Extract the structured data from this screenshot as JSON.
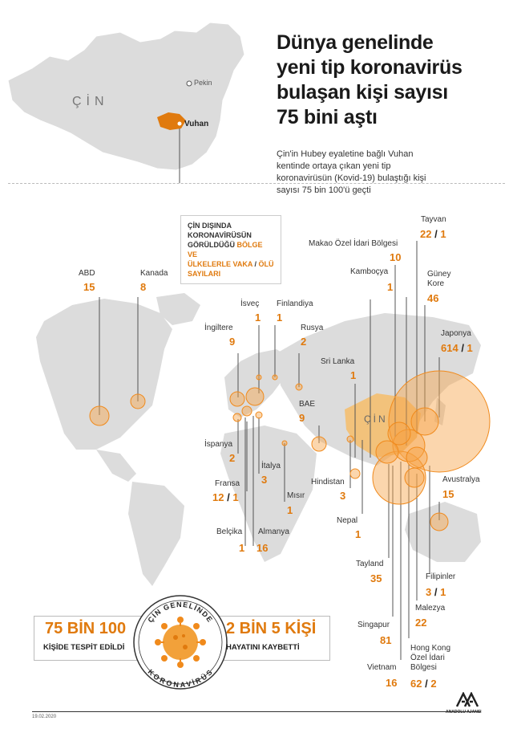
{
  "title": "Dünya genelinde yeni tip koronavirüs bulaşan kişi sayısı 75 bini aştı",
  "title_lines": [
    "Dünya genelinde",
    "yeni tip koronavirüs",
    "bulaşan kişi sayısı",
    "75 bini aştı"
  ],
  "subtitle": "Çin'in Hubey eyaletine bağlı Vuhan kentinde ortaya çıkan yeni tip koronavirüsün (Kovid-19) bulaştığı kişi sayısı 75 bin 100'ü geçti",
  "subtitle_lines": [
    "Çin'in Hubey eyaletine bağlı Vuhan",
    "kentinde ortaya çıkan yeni tip",
    "koronavirüsün (Kovid-19) bulaştığı kişi",
    "sayısı 75 bin 100'ü geçti"
  ],
  "china_map": {
    "country": "ÇİN",
    "capital": "Pekin",
    "city": "Vuhan"
  },
  "legend": {
    "line1": "ÇİN DIŞINDA",
    "line2": "KORONAVİRÜSÜN",
    "line3_plain": "GÖRÜLDÜĞÜ",
    "line3_orange": "BÖLGE VE",
    "line4_orange": "ÜLKELERLE VAKA",
    "line4_plain": "/",
    "line4_orange2": "ÖLÜ",
    "line5_orange": "SAYILARI"
  },
  "world_map_label": "ÇİN",
  "countries": {
    "abd": {
      "name": "ABD",
      "value": "15"
    },
    "kanada": {
      "name": "Kanada",
      "value": "8"
    },
    "isvec": {
      "name": "İsveç",
      "value": "1"
    },
    "finlandiya": {
      "name": "Finlandiya",
      "value": "1"
    },
    "ingiltere": {
      "name": "İngiltere",
      "value": "9"
    },
    "rusya": {
      "name": "Rusya",
      "value": "2"
    },
    "srilanka": {
      "name": "Sri Lanka",
      "value": "1"
    },
    "bae": {
      "name": "BAE",
      "value": "9"
    },
    "ispanya": {
      "name": "İspanya",
      "value": "2"
    },
    "italya": {
      "name": "İtalya",
      "value": "3"
    },
    "fransa": {
      "name": "Fransa",
      "cases": "12",
      "deaths": "1"
    },
    "misir": {
      "name": "Mısır",
      "value": "1"
    },
    "hindistan": {
      "name": "Hindistan",
      "value": "3"
    },
    "nepal": {
      "name": "Nepal",
      "value": "1"
    },
    "belcika": {
      "name": "Belçika",
      "value": "1"
    },
    "almanya": {
      "name": "Almanya",
      "value": "16"
    },
    "tayvan": {
      "name": "Tayvan",
      "cases": "22",
      "deaths": "1"
    },
    "makao": {
      "name": "Makao Özel İdari Bölgesi",
      "value": "10"
    },
    "kambocya": {
      "name": "Kamboçya",
      "value": "1"
    },
    "guneykore": {
      "name_line1": "Güney",
      "name_line2": "Kore",
      "value": "46"
    },
    "japonya": {
      "name": "Japonya",
      "cases": "614",
      "deaths": "1"
    },
    "avustralya": {
      "name": "Avustralya",
      "value": "15"
    },
    "tayland": {
      "name": "Tayland",
      "value": "35"
    },
    "filipinler": {
      "name": "Filipinler",
      "cases": "3",
      "deaths": "1"
    },
    "malezya": {
      "name": "Malezya",
      "value": "22"
    },
    "singapur": {
      "name": "Singapur",
      "value": "81"
    },
    "hongkong": {
      "name_line1": "Hong Kong",
      "name_line2": "Özel İdari",
      "name_line3": "Bölgesi",
      "cases": "62",
      "deaths": "2"
    },
    "vietnam": {
      "name": "Vietnam",
      "value": "16"
    }
  },
  "china_totals": {
    "top_arc": "ÇİN GENELİNDE",
    "bottom_arc": "KORONAVİRÜS",
    "cases_value": "75 BİN 100",
    "cases_label": "KİŞİDE TESPİT EDİLDİ",
    "deaths_value": "2 BİN 5 KİŞİ",
    "deaths_label": "HAYATINI KAYBETTİ"
  },
  "date": "19.02.2020",
  "agency": "ANADOLU AJANSI",
  "colors": {
    "accent": "#e07a0e",
    "land": "#dcdcdc",
    "china": "#f2c27b"
  }
}
